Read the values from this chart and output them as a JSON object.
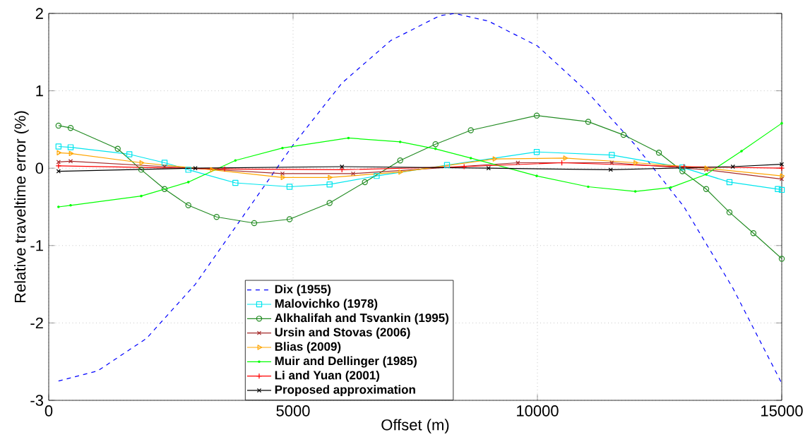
{
  "chart_data": {
    "type": "line",
    "xlabel": "Offset (m)",
    "ylabel": "Relative traveltime error (%)",
    "xlim": [
      0,
      15000
    ],
    "xticks": [
      0,
      5000,
      10000,
      15000
    ],
    "ylim": [
      -3,
      2
    ],
    "yticks": [
      -3,
      -2,
      -1,
      0,
      1,
      2
    ],
    "grid": true,
    "legend": "bottom",
    "series": [
      {
        "name": "Dix (1955)",
        "color": "#0000ff",
        "marker": "none",
        "line_style": "dashed",
        "x": [
          200,
          1000,
          2000,
          3000,
          4000,
          5000,
          6000,
          7000,
          8000,
          8300,
          9000,
          10000,
          11000,
          12000,
          13000,
          14000,
          15000
        ],
        "values": [
          -2.75,
          -2.62,
          -2.2,
          -1.5,
          -0.6,
          0.3,
          1.1,
          1.65,
          1.97,
          2.0,
          1.9,
          1.58,
          1.0,
          0.3,
          -0.5,
          -1.55,
          -2.78
        ]
      },
      {
        "name": "Malovichko (1978)",
        "color": "#00e5ee",
        "marker": "square",
        "line_style": "solid",
        "x": [
          200,
          448,
          1650,
          2370,
          2857,
          3820,
          4928,
          5747,
          6711,
          8150,
          9986,
          11522,
          12967,
          13930,
          14920,
          15000
        ],
        "values": [
          0.28,
          0.27,
          0.18,
          0.07,
          -0.02,
          -0.19,
          -0.24,
          -0.21,
          -0.1,
          0.04,
          0.21,
          0.17,
          0.01,
          -0.18,
          -0.27,
          -0.28
        ]
      },
      {
        "name": "Alkhalifah and Tsvankin (1995)",
        "color": "#228b22",
        "marker": "circle",
        "line_style": "solid",
        "x": [
          200,
          448,
          1412,
          1893,
          2370,
          2857,
          3435,
          4205,
          4928,
          5747,
          6470,
          7192,
          7915,
          8637,
          9986,
          11040,
          11763,
          12486,
          12967,
          13454,
          13930,
          14420,
          15000
        ],
        "values": [
          0.55,
          0.52,
          0.25,
          -0.02,
          -0.27,
          -0.48,
          -0.63,
          -0.71,
          -0.66,
          -0.45,
          -0.18,
          0.1,
          0.31,
          0.49,
          0.68,
          0.6,
          0.43,
          0.2,
          -0.04,
          -0.27,
          -0.57,
          -0.84,
          -1.17
        ]
      },
      {
        "name": "Ursin and Stovas (2006)",
        "color": "#a52a2a",
        "marker": "cross",
        "line_style": "solid",
        "x": [
          200,
          448,
          2370,
          4783,
          6229,
          9600,
          11522,
          13454,
          15000
        ],
        "values": [
          0.08,
          0.09,
          0.02,
          -0.07,
          -0.07,
          0.07,
          0.07,
          -0.02,
          -0.14
        ]
      },
      {
        "name": "Blias (2009)",
        "color": "#ffa500",
        "marker": "triangle",
        "line_style": "solid",
        "x": [
          200,
          448,
          1893,
          3338,
          4783,
          5747,
          7192,
          9120,
          10564,
          12004,
          13454,
          15000
        ],
        "values": [
          0.2,
          0.19,
          0.07,
          -0.02,
          -0.12,
          -0.12,
          -0.05,
          0.12,
          0.13,
          0.07,
          0.0,
          -0.1
        ]
      },
      {
        "name": "Muir and Dellinger (1985)",
        "color": "#00ff00",
        "marker": "point",
        "line_style": "solid",
        "x": [
          200,
          448,
          1893,
          2857,
          3820,
          4783,
          6133,
          7192,
          7915,
          8637,
          9986,
          11040,
          12004,
          12727,
          13454,
          14177,
          15000
        ],
        "values": [
          -0.5,
          -0.48,
          -0.36,
          -0.18,
          0.1,
          0.26,
          0.39,
          0.34,
          0.25,
          0.13,
          -0.1,
          -0.24,
          -0.3,
          -0.25,
          -0.08,
          0.22,
          0.58
        ]
      },
      {
        "name": "Li and Yuan (2001)",
        "color": "#ff0000",
        "marker": "plus",
        "line_style": "solid",
        "x": [
          200,
          3600,
          6000,
          8500,
          10500,
          13000,
          15000
        ],
        "values": [
          0.03,
          -0.01,
          -0.02,
          0.02,
          0.07,
          0.02,
          0.0
        ]
      },
      {
        "name": "Proposed approximation",
        "color": "#000000",
        "marker": "cross",
        "line_style": "solid",
        "x": [
          200,
          3000,
          6000,
          9000,
          11500,
          14000,
          15000
        ],
        "values": [
          -0.04,
          0.0,
          0.02,
          0.0,
          -0.02,
          0.02,
          0.05
        ]
      }
    ]
  }
}
